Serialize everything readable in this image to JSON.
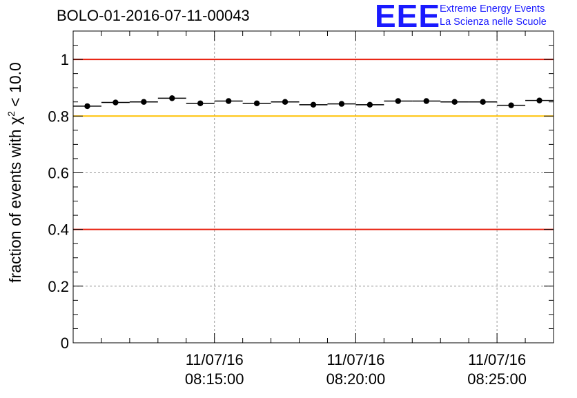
{
  "chart_data": {
    "type": "scatter",
    "title": "BOLO-01-2016-07-11-00043",
    "ylabel": "fraction of events with χ² < 10.0",
    "ylabel_parts": {
      "prefix": "fraction of events with ",
      "chi": "χ",
      "sup": "2",
      "suffix": " < 10.0"
    },
    "ylim": [
      0,
      1.1
    ],
    "yticks": [
      "0",
      "0.2",
      "0.4",
      "0.6",
      "0.8",
      "1"
    ],
    "ytick_values": [
      0,
      0.2,
      0.4,
      0.6,
      0.8,
      1.0
    ],
    "xlim": [
      "08:10:00",
      "08:27:00"
    ],
    "xtick_labels": [
      {
        "date": "11/07/16",
        "time": "08:15:00"
      },
      {
        "date": "11/07/16",
        "time": "08:20:00"
      },
      {
        "date": "11/07/16",
        "time": "08:25:00"
      }
    ],
    "grid": true,
    "reference_lines": [
      {
        "y": 1.0,
        "color": "#e8200f"
      },
      {
        "y": 0.8,
        "color": "#ffc000"
      },
      {
        "y": 0.4,
        "color": "#e8200f"
      }
    ],
    "series": [
      {
        "marker_color": "#000000",
        "x": [
          "08:10:30",
          "08:11:30",
          "08:12:30",
          "08:13:30",
          "08:14:30",
          "08:15:30",
          "08:16:30",
          "08:17:30",
          "08:18:30",
          "08:19:30",
          "08:20:30",
          "08:21:30",
          "08:22:30",
          "08:23:30",
          "08:24:30",
          "08:25:30",
          "08:26:30"
        ],
        "y": [
          0.835,
          0.848,
          0.85,
          0.863,
          0.845,
          0.853,
          0.845,
          0.85,
          0.84,
          0.843,
          0.84,
          0.853,
          0.853,
          0.85,
          0.85,
          0.838,
          0.855
        ]
      }
    ]
  },
  "logo": {
    "letters": "EEE",
    "line1": "Extreme Energy Events",
    "line2": "La Scienza nelle Scuole",
    "color": "#1a1aff"
  }
}
